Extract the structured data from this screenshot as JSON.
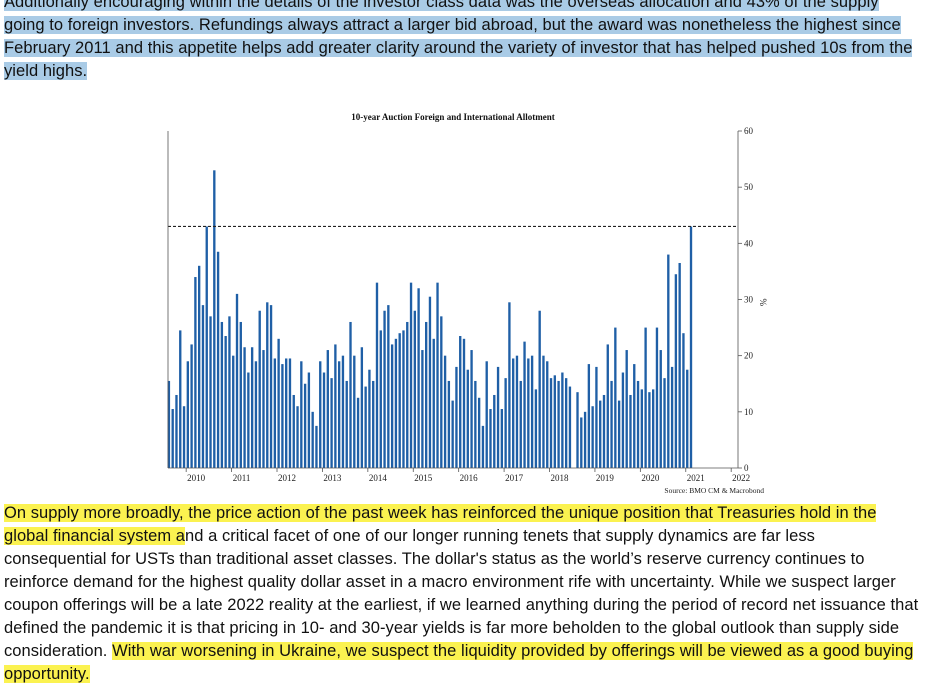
{
  "top_paragraph": {
    "text": "Additionally encouraging within the details of the investor class data was the overseas allocation and 43% of the supply going to foreign investors. Refundings always attract a larger bid abroad, but the award was nonetheless the highest since February 2011 and this appetite helps add greater clarity around the variety of investor that has helped pushed 10s from the yield highs.",
    "highlight_color": "#a9cbe6"
  },
  "bottom_paragraph": {
    "seg1_highlighted": "On supply more broadly, the price action of the past week has reinforced the unique position that Treasuries hold in the global financial system a",
    "seg2_plain": "nd a critical facet of one of our longer running tenets that supply dynamics are far less consequential for USTs than traditional asset classes. The dollar's status as the world’s reserve currency continues to reinforce demand for the highest quality dollar asset in a macro environment rife with uncertainty. While we suspect larger coupon offerings will be a late 2022 reality at the earliest, if we learned anything during the period of record net issuance that defined the pandemic it is that pricing in 10- and 30-year yields is far more beholden to the global outlook than supply side consideration. ",
    "seg3_highlighted": "With war worsening in Ukraine, we suspect the liquidity provided by offerings will be viewed as a good buying opportunity.",
    "highlight_color": "#fbf250"
  },
  "chart_data": {
    "type": "bar",
    "title": "10-year Auction Foreign and International Allotment",
    "ylabel": "%",
    "source": "Source: BMO CM & Macrobond",
    "ylim": [
      0,
      60
    ],
    "yticks": [
      0,
      10,
      20,
      30,
      40,
      50,
      60
    ],
    "reference_line": 43,
    "xlim": [
      2009.6,
      2022.15
    ],
    "xtick_years": [
      2010,
      2011,
      2012,
      2013,
      2014,
      2015,
      2016,
      2017,
      2018,
      2019,
      2020,
      2021,
      2022
    ],
    "bar_color": "#1f5fa6",
    "x_start": 2009.62,
    "x_step": 0.0833,
    "values": [
      15.5,
      10.5,
      13,
      24.5,
      11,
      19,
      22,
      34,
      36,
      29,
      43,
      27,
      53,
      38.5,
      26,
      23.5,
      27,
      20,
      31,
      26,
      21.5,
      17,
      21.5,
      19,
      28,
      21,
      29.5,
      29,
      19.5,
      23,
      18.5,
      19.5,
      19.5,
      13,
      11,
      19,
      15,
      17,
      10,
      7.5,
      19,
      17,
      21,
      16,
      22,
      19,
      20,
      15.5,
      26,
      20,
      12.5,
      21.5,
      14.5,
      17.5,
      15.5,
      33,
      24.5,
      28,
      29,
      22,
      23,
      24,
      24.5,
      26,
      33,
      28,
      32,
      21,
      26,
      30.5,
      23,
      33,
      27,
      20,
      15.5,
      12,
      18,
      23.5,
      23,
      17.5,
      21,
      15.5,
      12.5,
      7.5,
      19,
      10.5,
      13,
      18,
      10.5,
      16,
      29.5,
      19.5,
      20,
      15.5,
      22.5,
      19.5,
      20,
      14,
      28,
      20,
      19,
      16,
      16.5,
      15.5,
      17,
      16,
      14.5,
      0,
      13.5,
      9,
      10,
      18.5,
      11,
      18,
      12,
      13,
      22,
      15.5,
      25,
      12,
      17,
      21,
      13,
      18.5,
      15.5,
      14,
      25,
      13.5,
      14,
      25,
      21,
      16,
      38,
      18,
      34.5,
      36.5,
      24,
      17.5,
      43
    ],
    "note": "values are estimated monthly observations read off the chart"
  }
}
